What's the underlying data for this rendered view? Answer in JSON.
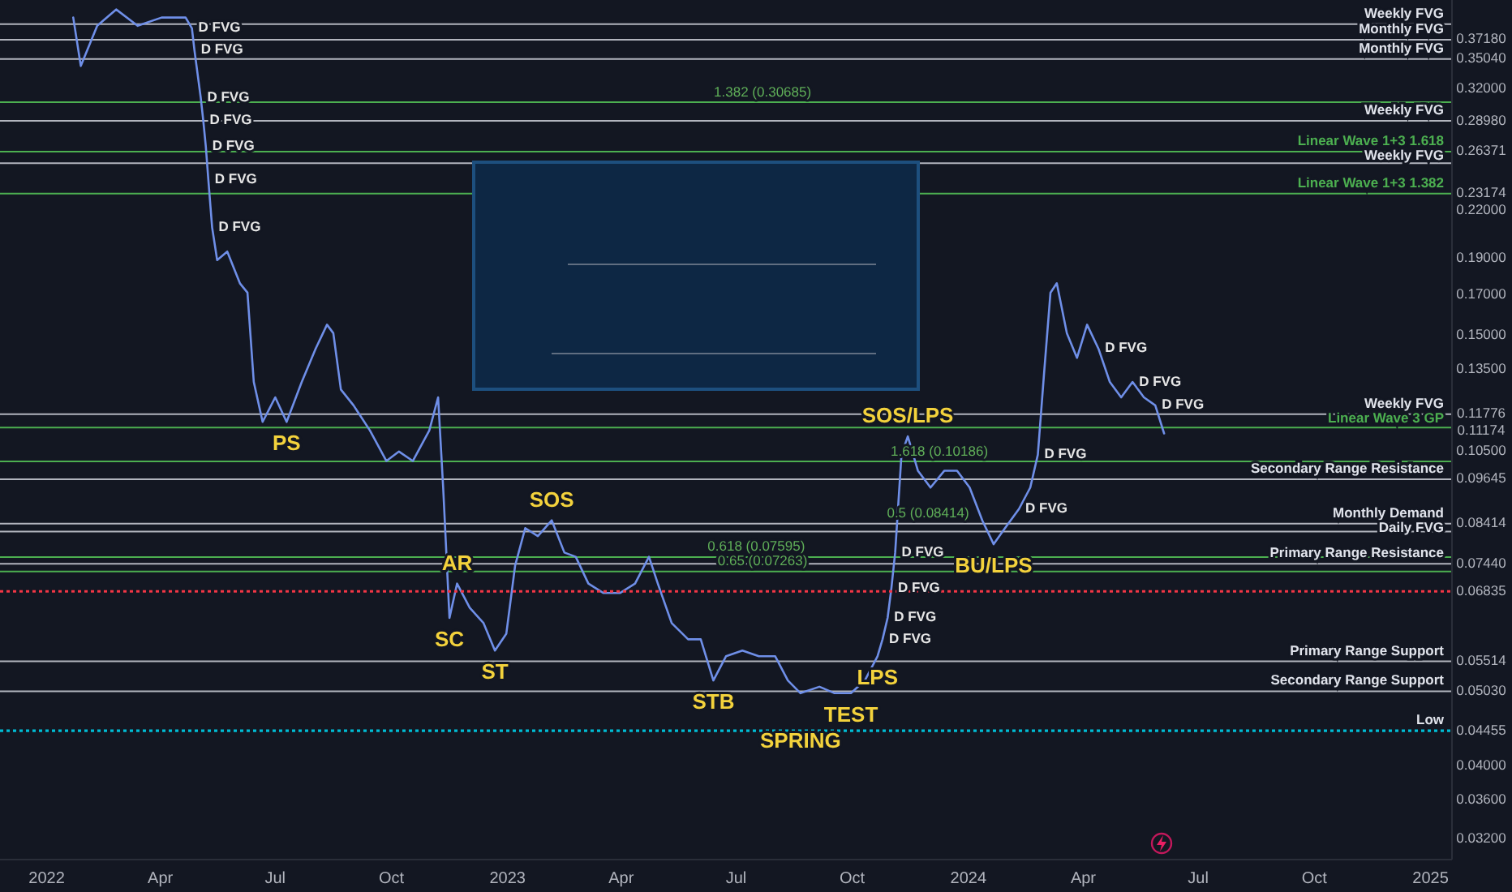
{
  "chart_data": {
    "type": "line",
    "log": true,
    "color": "#6f8fe8",
    "xlim": [
      "2021-11-25",
      "2025-01-18"
    ],
    "xticks": [
      {
        "value": "2022-01-01",
        "label": "2022"
      },
      {
        "value": "2022-04-01",
        "label": "Apr"
      },
      {
        "value": "2022-07-01",
        "label": "Jul"
      },
      {
        "value": "2022-10-01",
        "label": "Oct"
      },
      {
        "value": "2023-01-01",
        "label": "2023"
      },
      {
        "value": "2023-04-01",
        "label": "Apr"
      },
      {
        "value": "2023-07-01",
        "label": "Jul"
      },
      {
        "value": "2023-10-01",
        "label": "Oct"
      },
      {
        "value": "2024-01-01",
        "label": "2024"
      },
      {
        "value": "2024-04-01",
        "label": "Apr"
      },
      {
        "value": "2024-07-01",
        "label": "Jul"
      },
      {
        "value": "2024-10-01",
        "label": "Oct"
      },
      {
        "value": "2025-01-01",
        "label": "2025"
      }
    ],
    "ylim": [
      0.03,
      0.42
    ],
    "yticks": [
      {
        "value": 0.3718,
        "label": "0.37180"
      },
      {
        "value": 0.3504,
        "label": "0.35040"
      },
      {
        "value": 0.32,
        "label": "0.32000"
      },
      {
        "value": 0.2898,
        "label": "0.28980"
      },
      {
        "value": 0.26371,
        "label": "0.26371"
      },
      {
        "value": 0.23174,
        "label": "0.23174"
      },
      {
        "value": 0.22,
        "label": "0.22000"
      },
      {
        "value": 0.19,
        "label": "0.19000"
      },
      {
        "value": 0.17,
        "label": "0.17000"
      },
      {
        "value": 0.15,
        "label": "0.15000"
      },
      {
        "value": 0.135,
        "label": "0.13500"
      },
      {
        "value": 0.11776,
        "label": "0.11776"
      },
      {
        "value": 0.11174,
        "label": "0.11174"
      },
      {
        "value": 0.105,
        "label": "0.10500"
      },
      {
        "value": 0.09645,
        "label": "0.09645"
      },
      {
        "value": 0.08414,
        "label": "0.08414"
      },
      {
        "value": 0.0744,
        "label": "0.07440"
      },
      {
        "value": 0.06835,
        "label": "0.06835"
      },
      {
        "value": 0.05514,
        "label": "0.05514"
      },
      {
        "value": 0.0503,
        "label": "0.05030"
      },
      {
        "value": 0.04455,
        "label": "0.04455"
      },
      {
        "value": 0.04,
        "label": "0.04000"
      },
      {
        "value": 0.036,
        "label": "0.03600"
      },
      {
        "value": 0.032,
        "label": "0.03200"
      }
    ],
    "x": [
      "2022-01-22",
      "2022-01-28",
      "2022-02-10",
      "2022-02-25",
      "2022-03-14",
      "2022-04-02",
      "2022-04-21",
      "2022-04-26",
      "2022-04-28",
      "2022-05-03",
      "2022-05-05",
      "2022-05-07",
      "2022-05-09",
      "2022-05-12",
      "2022-05-16",
      "2022-05-24",
      "2022-06-03",
      "2022-06-09",
      "2022-06-14",
      "2022-06-21",
      "2022-07-01",
      "2022-07-10",
      "2022-07-22",
      "2022-08-02",
      "2022-08-11",
      "2022-08-16",
      "2022-08-22",
      "2022-09-01",
      "2022-09-14",
      "2022-09-27",
      "2022-10-07",
      "2022-10-18",
      "2022-10-31",
      "2022-11-07",
      "2022-11-11",
      "2022-11-16",
      "2022-11-22",
      "2022-12-02",
      "2022-12-13",
      "2022-12-22",
      "2022-12-31",
      "2023-01-07",
      "2023-01-15",
      "2023-01-25",
      "2023-02-05",
      "2023-02-15",
      "2023-02-24",
      "2023-03-06",
      "2023-03-18",
      "2023-03-31",
      "2023-04-12",
      "2023-04-23",
      "2023-04-30",
      "2023-05-11",
      "2023-05-24",
      "2023-06-03",
      "2023-06-13",
      "2023-06-23",
      "2023-07-06",
      "2023-07-19",
      "2023-08-01",
      "2023-08-11",
      "2023-08-21",
      "2023-09-05",
      "2023-09-17",
      "2023-09-30",
      "2023-10-11",
      "2023-10-21",
      "2023-10-25",
      "2023-10-29",
      "2023-11-01",
      "2023-11-04",
      "2023-11-09",
      "2023-11-14",
      "2023-11-22",
      "2023-12-02",
      "2023-12-13",
      "2023-12-23",
      "2024-01-02",
      "2024-01-12",
      "2024-01-21",
      "2024-01-30",
      "2024-02-10",
      "2024-02-19",
      "2024-02-25",
      "2024-03-01",
      "2024-03-06",
      "2024-03-11",
      "2024-03-19",
      "2024-03-27",
      "2024-04-04",
      "2024-04-13",
      "2024-04-22",
      "2024-05-01",
      "2024-05-10",
      "2024-05-19",
      "2024-05-28",
      "2024-06-04"
    ],
    "values": [
      0.398,
      0.343,
      0.388,
      0.408,
      0.388,
      0.398,
      0.398,
      0.385,
      0.36,
      0.311,
      0.29,
      0.268,
      0.242,
      0.209,
      0.189,
      0.194,
      0.176,
      0.171,
      0.13,
      0.115,
      0.124,
      0.115,
      0.13,
      0.144,
      0.155,
      0.151,
      0.127,
      0.121,
      0.112,
      0.102,
      0.105,
      0.102,
      0.112,
      0.124,
      0.094,
      0.063,
      0.07,
      0.065,
      0.062,
      0.057,
      0.06,
      0.074,
      0.083,
      0.081,
      0.085,
      0.077,
      0.076,
      0.07,
      0.068,
      0.068,
      0.07,
      0.076,
      0.07,
      0.062,
      0.059,
      0.059,
      0.052,
      0.056,
      0.057,
      0.056,
      0.056,
      0.052,
      0.05,
      0.051,
      0.05,
      0.05,
      0.052,
      0.056,
      0.059,
      0.063,
      0.069,
      0.077,
      0.104,
      0.11,
      0.099,
      0.094,
      0.099,
      0.099,
      0.094,
      0.085,
      0.079,
      0.083,
      0.088,
      0.094,
      0.104,
      0.134,
      0.171,
      0.176,
      0.151,
      0.14,
      0.155,
      0.144,
      0.13,
      0.124,
      0.13,
      0.124,
      0.121,
      0.111
    ],
    "ref_lines": [
      {
        "axis": "y",
        "value": 0.39,
        "label": "Weekly FVG"
      },
      {
        "axis": "y",
        "value": 0.3718,
        "label": "Monthly FVG"
      },
      {
        "axis": "y",
        "value": 0.3504,
        "label": "Monthly FVG"
      },
      {
        "axis": "y",
        "value": 0.30685,
        "color": "#4caf50"
      },
      {
        "axis": "y",
        "value": 0.2898,
        "label": "Weekly FVG"
      },
      {
        "axis": "y",
        "value": 0.26371,
        "label": "Linear Wave 1+3 1.618",
        "color": "#4caf50"
      },
      {
        "axis": "y",
        "value": 0.2545,
        "label": "Weekly FVG"
      },
      {
        "axis": "y",
        "value": 0.23174,
        "label": "Linear Wave 1+3 1.382",
        "color": "#4caf50"
      },
      {
        "axis": "y",
        "value": 0.11776,
        "label": "Weekly FVG"
      },
      {
        "axis": "y",
        "value": 0.11303,
        "label": "Linear Wave 3 GP",
        "color": "#4caf50"
      },
      {
        "axis": "y",
        "value": 0.10186,
        "color": "#4caf50"
      },
      {
        "axis": "y",
        "value": 0.09645,
        "label": "Secondary Range Resistance"
      },
      {
        "axis": "y",
        "value": 0.08414,
        "label": "Monthly Demand"
      },
      {
        "axis": "y",
        "value": 0.08215,
        "label": "Daily FVG"
      },
      {
        "axis": "y",
        "value": 0.0744,
        "label": "Primary Range Resistance"
      },
      {
        "axis": "y",
        "value": 0.07595,
        "color": "#4caf50"
      },
      {
        "axis": "y",
        "value": 0.07263,
        "color": "#4caf50"
      },
      {
        "axis": "y",
        "value": 0.06835,
        "color": "#f23645",
        "line_style": "dotted"
      },
      {
        "axis": "y",
        "value": 0.05514,
        "label": "Primary Range Support"
      },
      {
        "axis": "y",
        "value": 0.0503,
        "label": "Secondary Range Support"
      },
      {
        "axis": "y",
        "value": 0.04455,
        "label": "Low",
        "color": "#00bcd4",
        "line_style": "dotted"
      }
    ],
    "annotations": [
      {
        "text": "PS",
        "x": "2022-07-10",
        "y": 0.115
      },
      {
        "text": "SC",
        "x": "2022-11-16",
        "y": 0.063
      },
      {
        "text": "AR",
        "x": "2022-11-22",
        "y": 0.07
      },
      {
        "text": "ST",
        "x": "2022-12-22",
        "y": 0.057
      },
      {
        "text": "SOS",
        "x": "2023-02-05",
        "y": 0.085
      },
      {
        "text": "STB",
        "x": "2023-06-13",
        "y": 0.052
      },
      {
        "text": "TEST",
        "x": "2023-09-30",
        "y": 0.05
      },
      {
        "text": "SPRING",
        "x": "2023-08-21",
        "y": 0.05
      },
      {
        "text": "LPS",
        "x": "2023-10-21",
        "y": 0.056
      },
      {
        "text": "SOS/LPS",
        "x": "2023-11-14",
        "y": 0.11
      },
      {
        "text": "BU/LPS",
        "x": "2024-01-21",
        "y": 0.079
      },
      {
        "text": "D FVG",
        "x": "2022-04-26",
        "y": 0.385
      },
      {
        "text": "D FVG",
        "x": "2022-04-28",
        "y": 0.36
      },
      {
        "text": "D FVG",
        "x": "2022-05-03",
        "y": 0.311
      },
      {
        "text": "D FVG",
        "x": "2022-05-05",
        "y": 0.29
      },
      {
        "text": "D FVG",
        "x": "2022-05-07",
        "y": 0.268
      },
      {
        "text": "D FVG",
        "x": "2022-05-09",
        "y": 0.242
      },
      {
        "text": "D FVG",
        "x": "2022-05-12",
        "y": 0.209
      },
      {
        "text": "D FVG",
        "x": "2024-04-13",
        "y": 0.144
      },
      {
        "text": "D FVG",
        "x": "2024-05-10",
        "y": 0.13
      },
      {
        "text": "D FVG",
        "x": "2024-05-28",
        "y": 0.121
      },
      {
        "text": "D FVG",
        "x": "2024-02-25",
        "y": 0.104
      },
      {
        "text": "D FVG",
        "x": "2024-02-10",
        "y": 0.088
      },
      {
        "text": "D FVG",
        "x": "2023-11-04",
        "y": 0.077
      },
      {
        "text": "D FVG",
        "x": "2023-11-01",
        "y": 0.069
      },
      {
        "text": "D FVG",
        "x": "2023-10-29",
        "y": 0.063
      },
      {
        "text": "D FVG",
        "x": "2023-10-25",
        "y": 0.059
      },
      {
        "text": "0.5 (0.08414)",
        "x": "2023-11-30",
        "y": 0.08414
      },
      {
        "text": "1.618 (0.10186)",
        "x": "2023-12-09",
        "y": 0.10186
      },
      {
        "text": "0.618 (0.07595)",
        "x": "2023-07-17",
        "y": 0.07595
      },
      {
        "text": "0.65 (0.07263)",
        "x": "2023-07-22",
        "y": 0.07263
      },
      {
        "text": "1.382 (0.30685)",
        "x": "2023-07-22",
        "y": 0.30685
      }
    ]
  }
}
